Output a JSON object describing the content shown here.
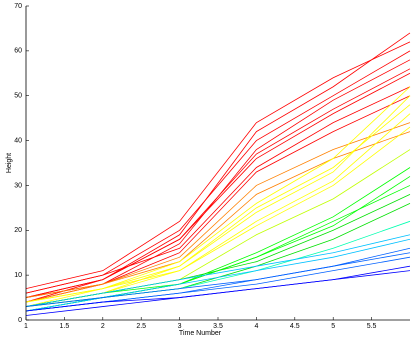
{
  "chart_data": {
    "type": "line",
    "x_label": "Time Number",
    "y_label": "Height",
    "x": [
      1,
      2,
      3,
      4,
      5,
      6
    ],
    "xlim": [
      1,
      6
    ],
    "xticks": [
      1,
      1.5,
      2,
      2.5,
      3,
      3.5,
      4,
      4.5,
      5,
      5.5
    ],
    "ylim": [
      0,
      70
    ],
    "yticks": [
      0,
      10,
      20,
      30,
      40,
      50,
      60,
      70
    ],
    "series": [
      {
        "color": "#ff0000",
        "values": [
          5,
          9,
          19,
          42,
          52,
          64
        ]
      },
      {
        "color": "#ff0000",
        "values": [
          6,
          10,
          20,
          40,
          50,
          60
        ]
      },
      {
        "color": "#ff0000",
        "values": [
          4,
          8,
          17,
          38,
          49,
          58
        ]
      },
      {
        "color": "#ff0000",
        "values": [
          7,
          11,
          22,
          44,
          54,
          62
        ]
      },
      {
        "color": "#ff0000",
        "values": [
          5,
          9,
          18,
          36,
          46,
          55
        ]
      },
      {
        "color": "#ff0000",
        "values": [
          6,
          10,
          16,
          34,
          44,
          52
        ]
      },
      {
        "color": "#ff0000",
        "values": [
          4,
          9,
          18,
          37,
          47,
          56
        ]
      },
      {
        "color": "#ff0000",
        "values": [
          5,
          8,
          15,
          33,
          42,
          50
        ]
      },
      {
        "color": "#ff8000",
        "values": [
          5,
          8,
          14,
          30,
          38,
          44
        ]
      },
      {
        "color": "#ff8000",
        "values": [
          4,
          8,
          13,
          28,
          36,
          42
        ]
      },
      {
        "color": "#ffff00",
        "values": [
          3,
          6,
          12,
          24,
          33,
          50
        ]
      },
      {
        "color": "#ffff00",
        "values": [
          4,
          7,
          13,
          26,
          36,
          52
        ]
      },
      {
        "color": "#ffff00",
        "values": [
          3,
          6,
          11,
          22,
          31,
          46
        ]
      },
      {
        "color": "#ffff00",
        "values": [
          3,
          7,
          12,
          25,
          34,
          48
        ]
      },
      {
        "color": "#ffff00",
        "values": [
          4,
          7,
          11,
          21,
          30,
          43
        ]
      },
      {
        "color": "#c0ff00",
        "values": [
          3,
          6,
          9,
          19,
          27,
          38
        ]
      },
      {
        "color": "#00ff00",
        "values": [
          3,
          6,
          8,
          14,
          21,
          32
        ]
      },
      {
        "color": "#00ff00",
        "values": [
          2,
          5,
          8,
          15,
          23,
          34
        ]
      },
      {
        "color": "#00e000",
        "values": [
          3,
          6,
          9,
          13,
          20,
          28
        ]
      },
      {
        "color": "#00e000",
        "values": [
          2,
          5,
          7,
          12,
          18,
          26
        ]
      },
      {
        "color": "#00ff00",
        "values": [
          3,
          5,
          8,
          14,
          22,
          30
        ]
      },
      {
        "color": "#00ffb0",
        "values": [
          2,
          5,
          7,
          11,
          16,
          22
        ]
      },
      {
        "color": "#00c0ff",
        "values": [
          3,
          6,
          9,
          12,
          15,
          19
        ]
      },
      {
        "color": "#00c0ff",
        "values": [
          2,
          5,
          8,
          11,
          14,
          18
        ]
      },
      {
        "color": "#0060ff",
        "values": [
          2,
          4,
          6,
          9,
          12,
          16
        ]
      },
      {
        "color": "#0060ff",
        "values": [
          2,
          4,
          6,
          8,
          11,
          14
        ]
      },
      {
        "color": "#0060ff",
        "values": [
          3,
          5,
          7,
          9,
          12,
          15
        ]
      },
      {
        "color": "#0000ff",
        "values": [
          2,
          4,
          5,
          7,
          9,
          12
        ]
      },
      {
        "color": "#0000ff",
        "values": [
          1,
          3,
          5,
          7,
          9,
          11
        ]
      }
    ]
  }
}
